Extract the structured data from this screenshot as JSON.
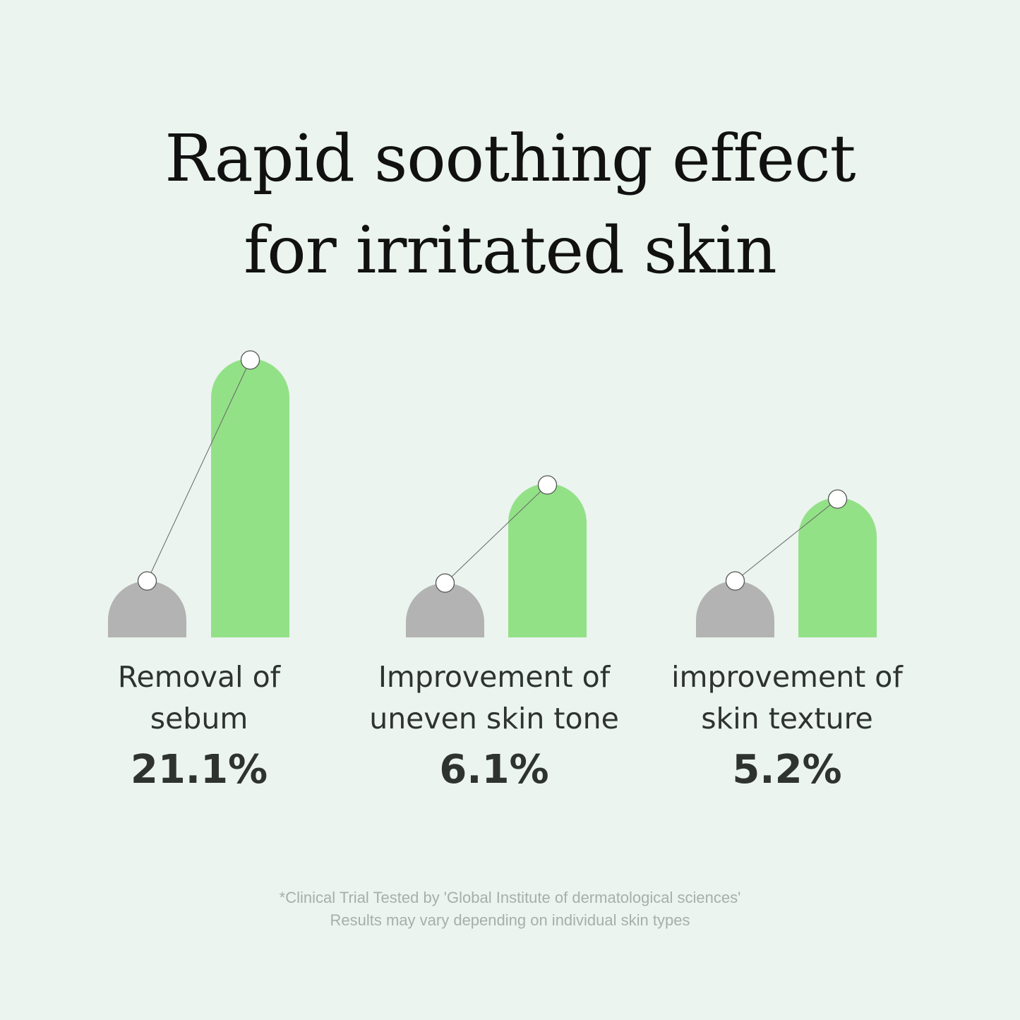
{
  "title": {
    "line1": "Rapid soothing effect",
    "line2": "for irritated skin"
  },
  "chart_data": {
    "type": "bar",
    "categories": [
      {
        "line1": "Removal of",
        "line2": "sebum"
      },
      {
        "line1": "Improvement of",
        "line2": "uneven skin tone"
      },
      {
        "line1": "improvement of",
        "line2": "skin texture"
      }
    ],
    "values": [
      "21.1%",
      "6.1%",
      "5.2%"
    ],
    "improvement_percent": [
      21.1,
      6.1,
      5.2
    ],
    "colors": {
      "before": "#b3b3b3",
      "after": "#93e187",
      "background": "#ebf4ef"
    }
  },
  "footnote": {
    "line1": "*Clinical Trial Tested by 'Global Institute of dermatological sciences'",
    "line2": "Results may vary depending on individual skin types"
  }
}
